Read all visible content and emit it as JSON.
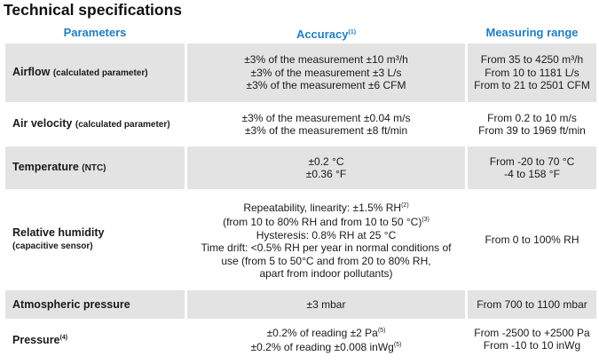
{
  "title": "Technical specifications",
  "headers": {
    "parameters": "Parameters",
    "accuracy": "Accuracy",
    "accuracy_note": "(1)",
    "range": "Measuring range"
  },
  "rows": [
    {
      "name": "Airflow",
      "sub": "(calculated parameter)",
      "accuracy": [
        "±3% of the measurement ±10 m³/h",
        "±3% of the measurement ±3 L/s",
        "±3% of the measurement ±6 CFM"
      ],
      "range": [
        "From 35 to 4250 m³/h",
        "From 10 to 1181 L/s",
        "From to 21 to 2501 CFM"
      ]
    },
    {
      "name": "Air velocity",
      "sub": "(calculated parameter)",
      "accuracy": [
        "±3% of the measurement ±0.04 m/s",
        "±3% of the measurement ±8 ft/min"
      ],
      "range": [
        "From 0.2 to 10 m/s",
        "From 39 to 1969 ft/min"
      ]
    },
    {
      "name": "Temperature",
      "sub": "(NTC)",
      "accuracy": [
        "±0.2 °C",
        "±0.36 °F"
      ],
      "range": [
        "From -20 to 70 °C",
        "-4 to 158 °F"
      ]
    },
    {
      "name": "Relative humidity",
      "sub": "(capacitive sensor)",
      "accuracy_l1": "Repeatability, linearity: ±1.5% RH",
      "accuracy_l1_note": "(2)",
      "accuracy_l2": "(from 10 to 80% RH and from 10 to 50 °C)",
      "accuracy_l2_note": "(3)",
      "accuracy_rest": [
        "Hysteresis: 0.8% RH at 25 °C",
        "Time drift: <0.5% RH per year in normal conditions of",
        "use (from 5 to 50°C and from 20 to 80% RH,",
        "apart from indoor pollutants)"
      ],
      "range": [
        "From 0 to 100% RH"
      ]
    },
    {
      "name": "Atmospheric pressure",
      "accuracy": [
        "±3 mbar"
      ],
      "range": [
        "From 700 to 1100 mbar"
      ]
    },
    {
      "name": "Pressure",
      "name_note": "(4)",
      "accuracy_l1": "±0.2% of reading ±2 Pa",
      "accuracy_l1_note": "(5)",
      "accuracy_l2": "±0.2% of reading ±0.008 inWg",
      "accuracy_l2_note": "(5)",
      "range": [
        "From -2500 to +2500 Pa",
        "From -10 to 10 inWg"
      ]
    }
  ]
}
